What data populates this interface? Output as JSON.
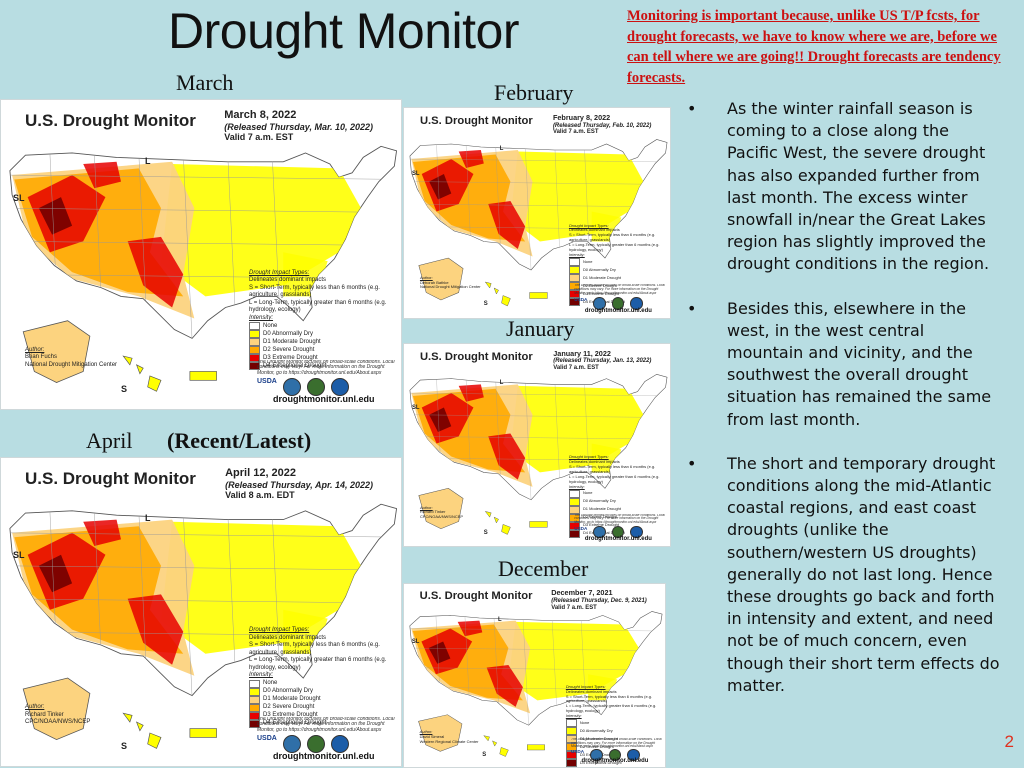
{
  "slide": {
    "title": "Drought Monitor",
    "note": "Monitoring is important because, unlike US T/P fcsts,  for drought forecasts, we have to know where we are, before we can tell where we are going!! Drought forecasts are  tendency forecasts.",
    "labels": {
      "march": "March",
      "february": "February",
      "january": "January",
      "april": "April",
      "recent": "(Recent/Latest)",
      "december": "December"
    },
    "page_number": "2"
  },
  "maps": {
    "march": {
      "header": "U.S. Drought Monitor",
      "date": "March 8, 2022",
      "released": "(Released Thursday, Mar. 10, 2022)",
      "valid": "Valid 7 a.m. EST",
      "author_title": "Author:",
      "author_name": "Brian Fuchs",
      "author_org": "National Drought Mitigation Center"
    },
    "february": {
      "header": "U.S. Drought Monitor",
      "date": "February 8, 2022",
      "released": "(Released Thursday, Feb. 10, 2022)",
      "valid": "Valid 7 a.m. EST",
      "author_title": "Author:",
      "author_name": "Deborah Bathke",
      "author_org": "National Drought Mitigation Center"
    },
    "january": {
      "header": "U.S. Drought Monitor",
      "date": "January 11, 2022",
      "released": "(Released Thursday, Jan. 13, 2022)",
      "valid": "Valid 7 a.m. EST",
      "author_title": "Author:",
      "author_name": "Richard Tinker",
      "author_org": "CPC/NOAA/NWS/NCEP"
    },
    "april": {
      "header": "U.S. Drought Monitor",
      "date": "April 12, 2022",
      "released": "(Released Thursday, Apr. 14, 2022)",
      "valid": "Valid 8 a.m. EDT",
      "author_title": "Author:",
      "author_name": "Richard Tinker",
      "author_org": "CPC/NOAA/NWS/NCEP"
    },
    "december": {
      "header": "U.S. Drought Monitor",
      "date": "December 7, 2021",
      "released": "(Released Thursday, Dec. 9, 2021)",
      "valid": "Valid 7 a.m. EST",
      "author_title": "Author:",
      "author_name": "David Simeral",
      "author_org": "Western Regional Climate Center"
    }
  },
  "legend": {
    "impact_title": "Drought Impact Types:",
    "delineates": "Delineates dominant impacts",
    "short_term": "S = Short-Term, typically less than 6 months (e.g. agriculture, grasslands)",
    "long_term": "L = Long-Term, typically greater than 6 months (e.g. hydrology, ecology)",
    "intensity_title": "Intensity:",
    "levels": [
      {
        "label": "None",
        "color": "#ffffff"
      },
      {
        "label": "D0 Abnormally Dry",
        "color": "#ffff00"
      },
      {
        "label": "D1 Moderate Drought",
        "color": "#fcd37f"
      },
      {
        "label": "D2 Severe Drought",
        "color": "#ffaa00"
      },
      {
        "label": "D3 Extreme Drought",
        "color": "#e60000"
      },
      {
        "label": "D4 Exceptional Drought",
        "color": "#730000"
      }
    ],
    "footnote": "The Drought Monitor focuses on broad-scale conditions. Local conditions may vary. For more information on the Drought Monitor, go to https://droughtmonitor.unl.edu/About.aspx",
    "site": "droughtmonitor.unl.edu",
    "logo_usda": "USDA",
    "region_sl": "SL",
    "region_l": "L",
    "region_s": "S"
  },
  "bullets": [
    "As the winter rainfall season is coming to a close along the Pacific West, the severe drought has also expanded further from last month. The excess winter snowfall in/near the Great Lakes region has slightly improved the drought conditions in the region.",
    "Besides this, elsewhere in the west, in the west central mountain and vicinity, and the southwest the overall drought situation has remained the same from last month.",
    "The short and temporary drought conditions along the mid-Atlantic coastal regions, and east coast droughts (unlike the southern/western US droughts) generally do not last long.  Hence these droughts go back and forth in intensity and extent, and need not be of much concern, even though their short term effects do matter."
  ],
  "bullet_glyph": "•"
}
